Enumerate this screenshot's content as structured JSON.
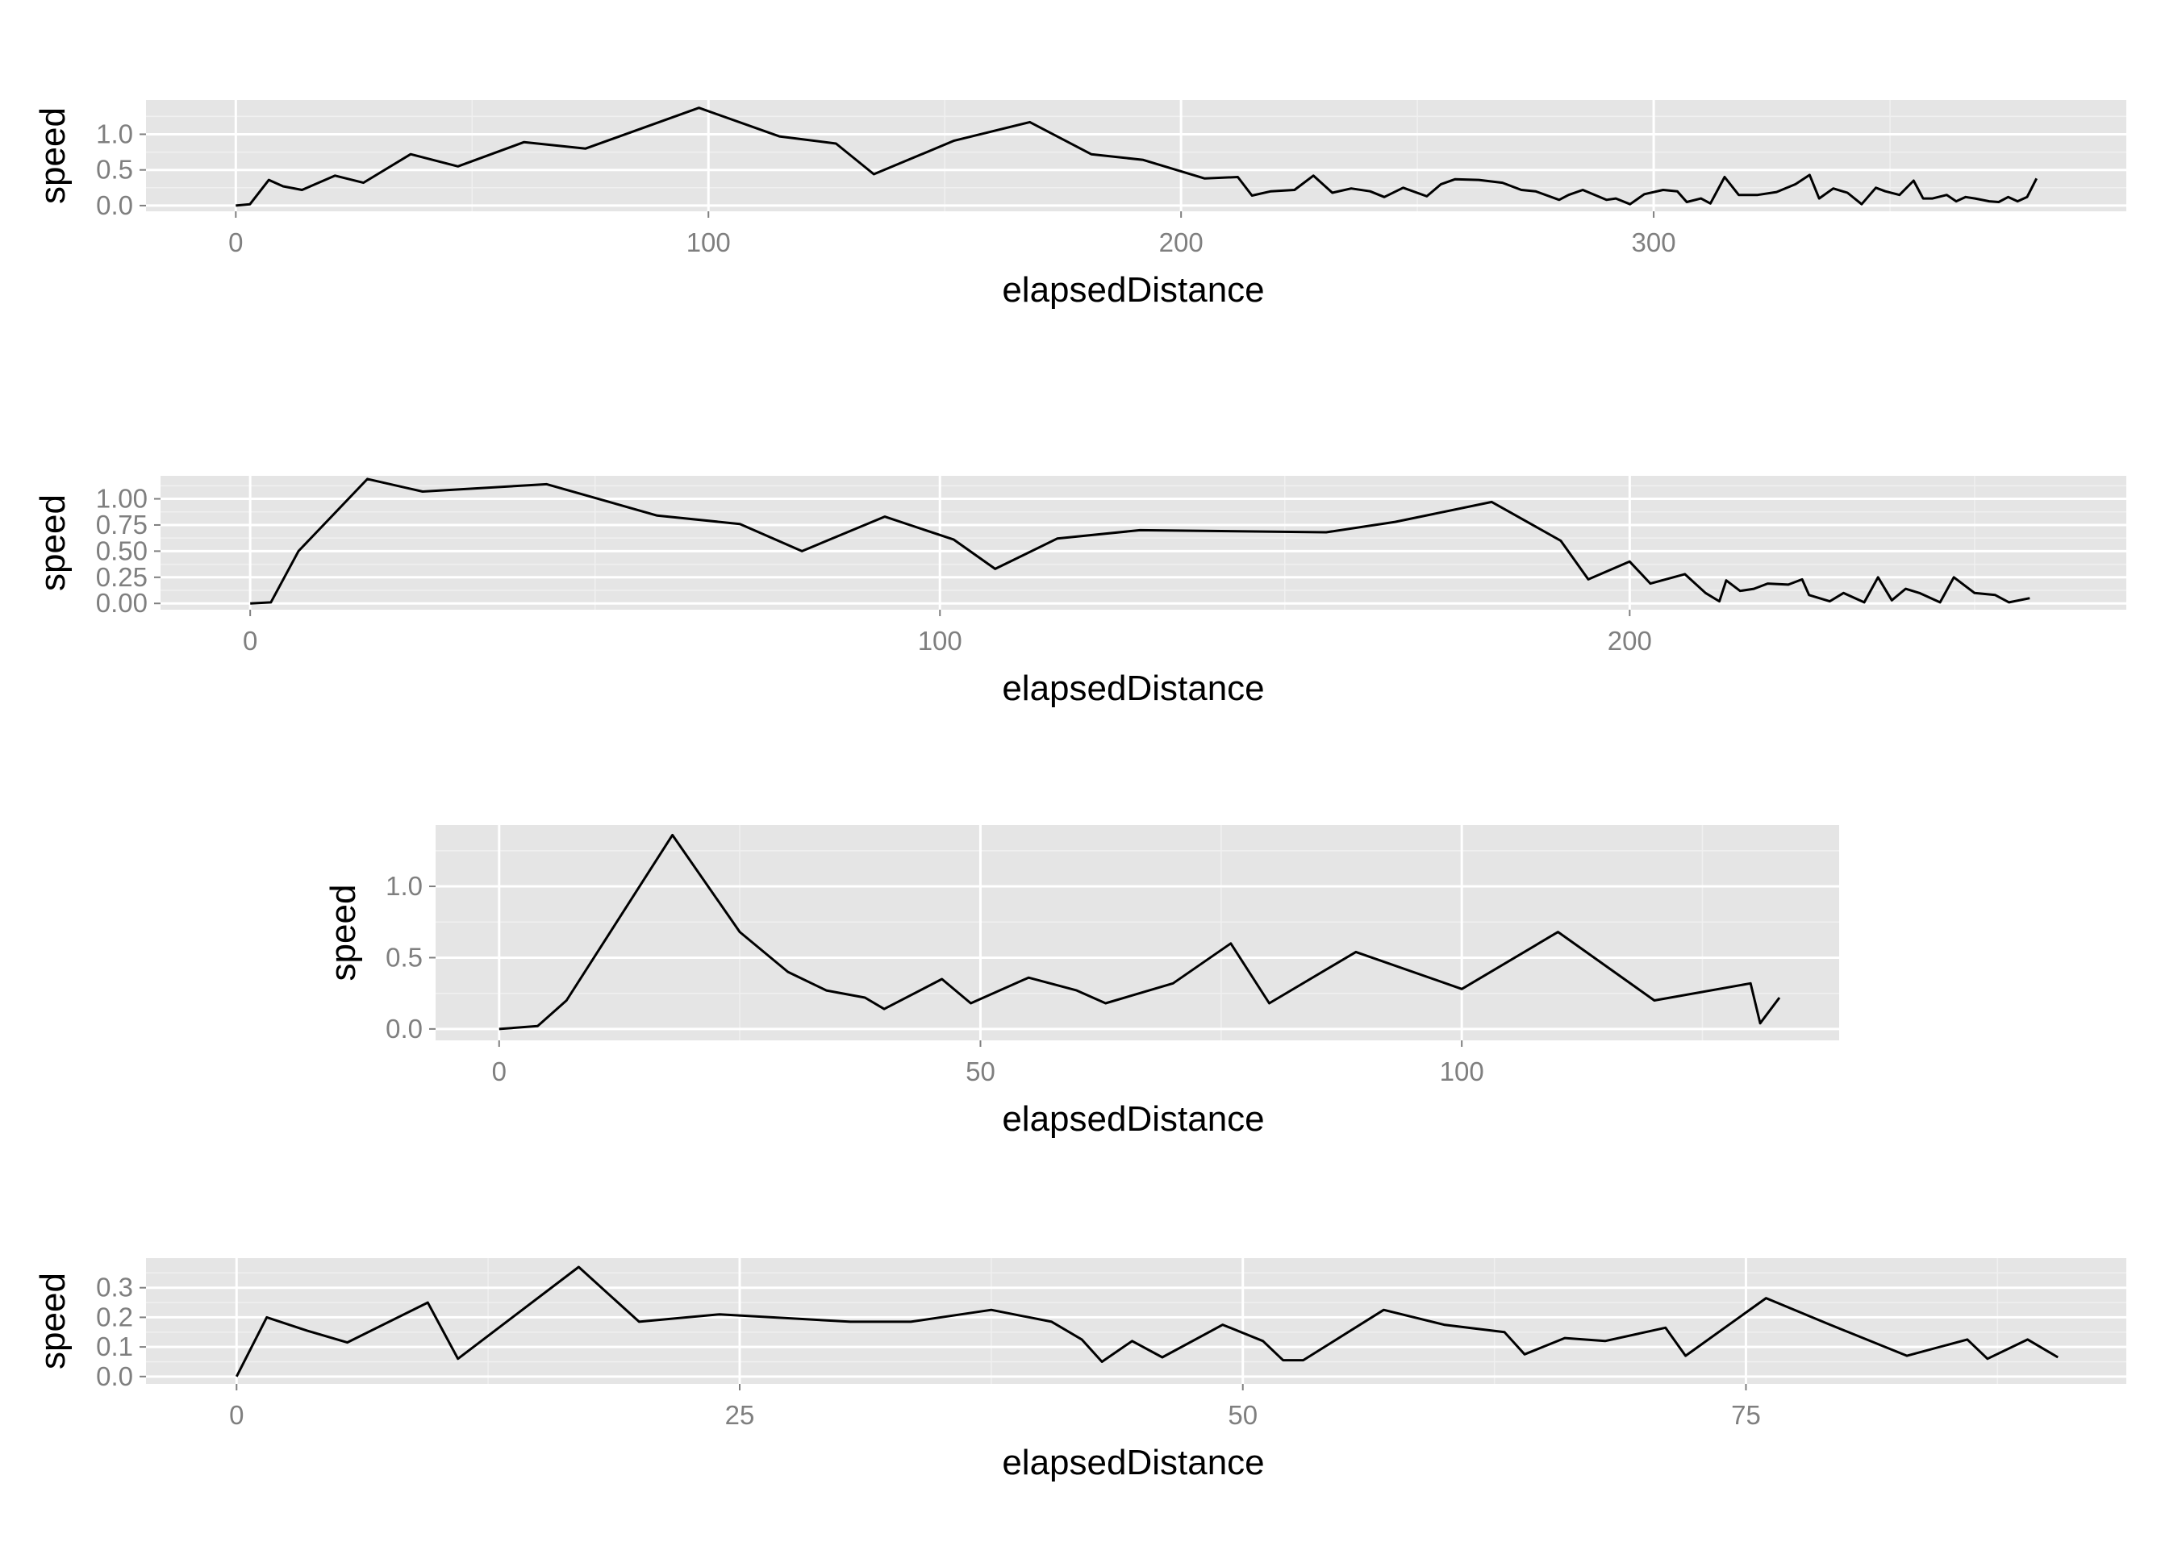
{
  "colors": {
    "panel": "#e5e5e5",
    "grid_major": "#ffffff",
    "grid_minor": "#f0f0f0",
    "line": "#000000",
    "tick_text": "#7f7f7f"
  },
  "chart_data": [
    {
      "type": "line",
      "xlabel": "elapsedDistance",
      "ylabel": "speed",
      "xlim": [
        -19,
        400
      ],
      "ylim": [
        -0.08,
        1.48
      ],
      "x_ticks": [
        0,
        100,
        200,
        300
      ],
      "x_tick_labels": [
        "0",
        "100",
        "200",
        "300"
      ],
      "y_ticks": [
        0.0,
        0.5,
        1.0
      ],
      "y_tick_labels": [
        "0.0",
        "0.5",
        "1.0"
      ],
      "x": [
        0,
        3,
        7,
        10,
        14,
        21,
        27,
        37,
        47,
        61,
        74,
        98,
        115,
        127,
        135,
        152,
        168,
        181,
        192,
        205,
        212,
        215,
        219,
        224,
        228,
        232,
        236,
        240,
        243,
        247,
        252,
        255,
        258,
        263,
        268,
        272,
        275,
        280,
        282,
        285,
        290,
        292,
        295,
        298,
        302,
        305,
        307,
        310,
        312,
        315,
        318,
        322,
        326,
        330,
        333,
        335,
        338,
        341,
        344,
        347,
        349,
        352,
        355,
        357,
        359,
        362,
        364,
        366,
        368,
        371,
        373,
        375,
        377,
        379,
        381
      ],
      "y": [
        0.0,
        0.02,
        0.36,
        0.27,
        0.22,
        0.42,
        0.32,
        0.72,
        0.55,
        0.89,
        0.8,
        1.37,
        0.97,
        0.87,
        0.44,
        0.91,
        1.17,
        0.72,
        0.64,
        0.38,
        0.4,
        0.14,
        0.2,
        0.22,
        0.42,
        0.18,
        0.24,
        0.2,
        0.12,
        0.25,
        0.13,
        0.3,
        0.37,
        0.36,
        0.32,
        0.22,
        0.2,
        0.08,
        0.15,
        0.22,
        0.08,
        0.1,
        0.02,
        0.16,
        0.22,
        0.2,
        0.05,
        0.1,
        0.03,
        0.4,
        0.15,
        0.15,
        0.19,
        0.3,
        0.43,
        0.1,
        0.24,
        0.18,
        0.02,
        0.25,
        0.2,
        0.15,
        0.35,
        0.1,
        0.1,
        0.15,
        0.06,
        0.12,
        0.1,
        0.06,
        0.05,
        0.12,
        0.06,
        0.12,
        0.38
      ]
    },
    {
      "type": "line",
      "xlabel": "elapsedDistance",
      "ylabel": "speed",
      "xlim": [
        -13,
        272
      ],
      "ylim": [
        -0.06,
        1.22
      ],
      "x_ticks": [
        0,
        100,
        200
      ],
      "x_tick_labels": [
        "0",
        "100",
        "200"
      ],
      "y_ticks": [
        0.0,
        0.25,
        0.5,
        0.75,
        1.0
      ],
      "y_tick_labels": [
        "0.00",
        "0.25",
        "0.50",
        "0.75",
        "1.00"
      ],
      "x": [
        0,
        3,
        7,
        17,
        25,
        43,
        59,
        71,
        80,
        92,
        102,
        108,
        117,
        129,
        156,
        166,
        180,
        190,
        194,
        200,
        203,
        208,
        211,
        213,
        214,
        216,
        218,
        220,
        223,
        225,
        226,
        229,
        231,
        234,
        236,
        238,
        240,
        242,
        245,
        247,
        250,
        253,
        255,
        258
      ],
      "y": [
        0.0,
        0.01,
        0.5,
        1.19,
        1.07,
        1.14,
        0.84,
        0.76,
        0.5,
        0.83,
        0.61,
        0.33,
        0.62,
        0.7,
        0.68,
        0.78,
        0.97,
        0.6,
        0.23,
        0.4,
        0.19,
        0.28,
        0.1,
        0.02,
        0.22,
        0.12,
        0.14,
        0.19,
        0.18,
        0.23,
        0.08,
        0.02,
        0.1,
        0.01,
        0.25,
        0.03,
        0.14,
        0.1,
        0.01,
        0.25,
        0.1,
        0.08,
        0.01,
        0.05
      ]
    },
    {
      "type": "line",
      "xlabel": "elapsedDistance",
      "ylabel": "speed",
      "xlim": [
        -6.6,
        139.2
      ],
      "ylim": [
        -0.08,
        1.43
      ],
      "x_ticks": [
        0,
        50,
        100
      ],
      "x_tick_labels": [
        "0",
        "50",
        "100"
      ],
      "y_ticks": [
        0.0,
        0.5,
        1.0
      ],
      "y_tick_labels": [
        "0.0",
        "0.5",
        "1.0"
      ],
      "x": [
        0,
        4,
        7,
        18,
        25,
        30,
        34,
        38,
        40,
        46,
        49,
        55,
        60,
        63,
        70,
        76,
        80,
        89,
        100,
        110,
        120,
        130,
        131,
        133
      ],
      "y": [
        0.0,
        0.02,
        0.2,
        1.36,
        0.68,
        0.4,
        0.27,
        0.22,
        0.14,
        0.35,
        0.18,
        0.36,
        0.27,
        0.18,
        0.32,
        0.6,
        0.18,
        0.54,
        0.28,
        0.68,
        0.2,
        0.32,
        0.04,
        0.22
      ]
    },
    {
      "type": "line",
      "xlabel": "elapsedDistance",
      "ylabel": "speed",
      "xlim": [
        -4.5,
        93.9
      ],
      "ylim": [
        -0.025,
        0.4
      ],
      "x_ticks": [
        0,
        25,
        50,
        75
      ],
      "x_tick_labels": [
        "0",
        "25",
        "50",
        "75"
      ],
      "y_ticks": [
        0.0,
        0.1,
        0.2,
        0.3
      ],
      "y_tick_labels": [
        "0.0",
        "0.1",
        "0.2",
        "0.3"
      ],
      "x": [
        0,
        1.5,
        3.5,
        5.5,
        9.5,
        11,
        17,
        20,
        24,
        30.5,
        33.5,
        37.5,
        40.5,
        42,
        43,
        44.5,
        46,
        49,
        51,
        52,
        53,
        57,
        60,
        63,
        64,
        66,
        68,
        71,
        72,
        76,
        79,
        83,
        86,
        87,
        89,
        90.5
      ],
      "y": [
        0.0,
        0.2,
        0.155,
        0.115,
        0.25,
        0.06,
        0.37,
        0.185,
        0.21,
        0.185,
        0.185,
        0.225,
        0.185,
        0.125,
        0.05,
        0.12,
        0.065,
        0.175,
        0.12,
        0.055,
        0.055,
        0.225,
        0.175,
        0.15,
        0.075,
        0.13,
        0.12,
        0.165,
        0.07,
        0.265,
        0.18,
        0.07,
        0.125,
        0.06,
        0.125,
        0.065
      ]
    }
  ]
}
